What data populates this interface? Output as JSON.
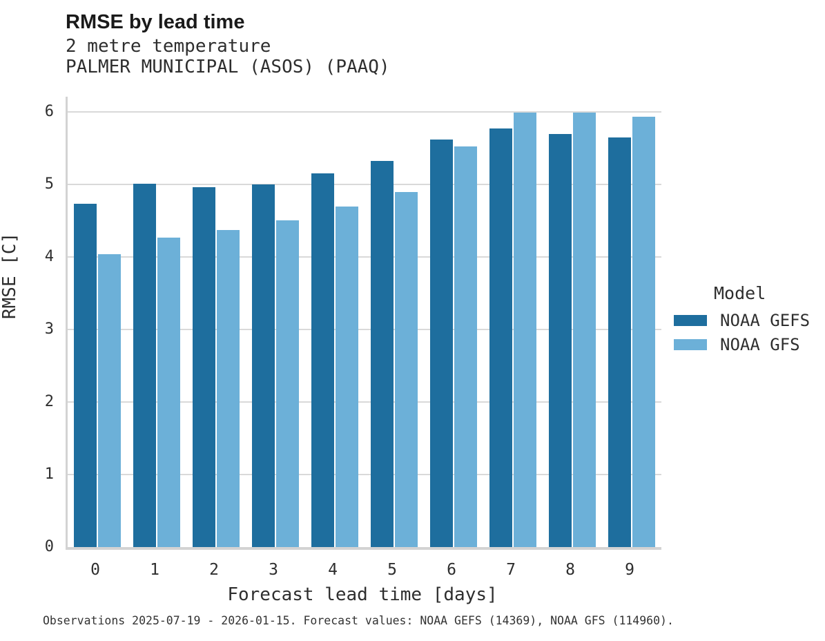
{
  "header": {
    "title": "RMSE by lead time",
    "subtitle1": "2 metre temperature",
    "subtitle2": "PALMER MUNICIPAL (ASOS) (PAAQ)"
  },
  "chart_data": {
    "type": "bar",
    "title": "RMSE by lead time",
    "subtitle": [
      "2 metre temperature",
      "PALMER MUNICIPAL (ASOS) (PAAQ)"
    ],
    "categories": [
      "0",
      "1",
      "2",
      "3",
      "4",
      "5",
      "6",
      "7",
      "8",
      "9"
    ],
    "series": [
      {
        "name": "NOAA GEFS",
        "color": "#1e6e9e",
        "values": [
          4.73,
          5.01,
          4.96,
          5.0,
          5.15,
          5.32,
          5.62,
          5.77,
          5.7,
          5.65
        ]
      },
      {
        "name": "NOAA GFS",
        "color": "#6cb0d8",
        "values": [
          4.04,
          4.27,
          4.37,
          4.51,
          4.7,
          4.9,
          5.52,
          5.99,
          5.99,
          5.93
        ]
      }
    ],
    "xlabel": "Forecast lead time [days]",
    "ylabel": "RMSE [C]",
    "ylim": [
      0,
      6.21
    ],
    "yticks": [
      0,
      1,
      2,
      3,
      4,
      5,
      6
    ],
    "grid": true,
    "legend_title": "Model",
    "legend_position": "right",
    "grid_color": "#d9d9d9",
    "axis_color": "#d3d3d3"
  },
  "footer": {
    "text": "Observations 2025-07-19 - 2026-01-15. Forecast values: NOAA GEFS (14369), NOAA GFS (114960)."
  }
}
